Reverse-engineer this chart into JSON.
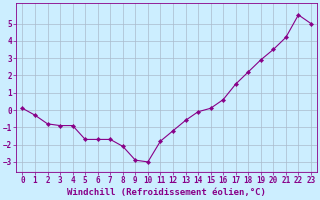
{
  "hours": [
    0,
    1,
    2,
    3,
    4,
    5,
    6,
    7,
    8,
    9,
    10,
    11,
    12,
    13,
    14,
    15,
    16,
    17,
    18,
    19,
    20,
    21,
    22,
    23
  ],
  "windchill": [
    0.1,
    -0.3,
    -0.8,
    -0.9,
    -0.9,
    -1.7,
    -1.7,
    -1.7,
    -2.1,
    -2.9,
    -3.0,
    -1.8,
    -1.2,
    -0.6,
    -0.1,
    0.1,
    0.6,
    1.5,
    2.2,
    2.9,
    3.5,
    4.2,
    5.5,
    5.0
  ],
  "line_color": "#880088",
  "marker": "D",
  "marker_size": 2.2,
  "bg_color": "#cceeff",
  "grid_color": "#aabbcc",
  "xlabel": "Windchill (Refroidissement éolien,°C)",
  "xlim": [
    -0.5,
    23.5
  ],
  "ylim": [
    -3.6,
    6.2
  ],
  "yticks": [
    -3,
    -2,
    -1,
    0,
    1,
    2,
    3,
    4,
    5
  ],
  "xticks": [
    0,
    1,
    2,
    3,
    4,
    5,
    6,
    7,
    8,
    9,
    10,
    11,
    12,
    13,
    14,
    15,
    16,
    17,
    18,
    19,
    20,
    21,
    22,
    23
  ],
  "tick_fontsize": 5.5,
  "xlabel_fontsize": 6.5,
  "axis_color": "#880088",
  "spine_color": "#880088"
}
